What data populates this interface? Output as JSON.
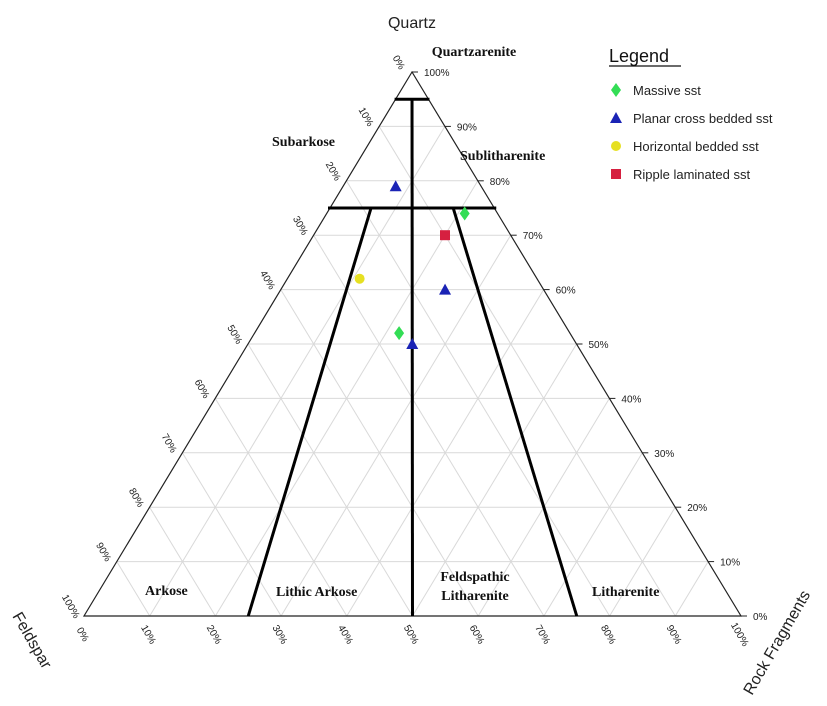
{
  "chart_data": {
    "type": "scatter",
    "subtype": "ternary",
    "vertices": {
      "top": "Quartz",
      "left": "Feldspar",
      "right": "Rock Fragments"
    },
    "tick_labels": [
      "0%",
      "10%",
      "20%",
      "30%",
      "40%",
      "50%",
      "60%",
      "70%",
      "80%",
      "90%",
      "100%"
    ],
    "grid": true,
    "fields": [
      {
        "name": "Quartzarenite"
      },
      {
        "name": "Subarkose"
      },
      {
        "name": "Sublitharenite"
      },
      {
        "name": "Arkose"
      },
      {
        "name": "Lithic Arkose"
      },
      {
        "name": "Feldspathic",
        "name2": "Litharenite"
      },
      {
        "name": "Litharenite"
      }
    ],
    "boundaries": {
      "quartz_levels": [
        95,
        75
      ],
      "rock_fragment_fraction_of_nonquartz": [
        0.25,
        0.5,
        0.75
      ]
    },
    "legend": {
      "title": "Legend",
      "placement": "top-right",
      "entries": [
        {
          "label": "Massive sst",
          "marker": "diamond",
          "color": "#33dd55"
        },
        {
          "label": "Planar cross bedded sst",
          "marker": "triangle",
          "color": "#1a23b5"
        },
        {
          "label": "Horizontal bedded sst",
          "marker": "circle",
          "color": "#e6e022"
        },
        {
          "label": "Ripple laminated sst",
          "marker": "square",
          "color": "#d62040"
        }
      ]
    },
    "series": [
      {
        "name": "Massive sst",
        "points": [
          {
            "quartz": 74,
            "feldspar": 5,
            "rock_fragments": 21
          },
          {
            "quartz": 52,
            "feldspar": 26,
            "rock_fragments": 22
          }
        ]
      },
      {
        "name": "Planar cross bedded sst",
        "points": [
          {
            "quartz": 79,
            "feldspar": 13,
            "rock_fragments": 8
          },
          {
            "quartz": 60,
            "feldspar": 15,
            "rock_fragments": 25
          },
          {
            "quartz": 50,
            "feldspar": 25,
            "rock_fragments": 25
          }
        ]
      },
      {
        "name": "Horizontal bedded sst",
        "points": [
          {
            "quartz": 62,
            "feldspar": 27,
            "rock_fragments": 11
          }
        ]
      },
      {
        "name": "Ripple laminated sst",
        "points": [
          {
            "quartz": 70,
            "feldspar": 10,
            "rock_fragments": 20
          }
        ]
      }
    ]
  }
}
